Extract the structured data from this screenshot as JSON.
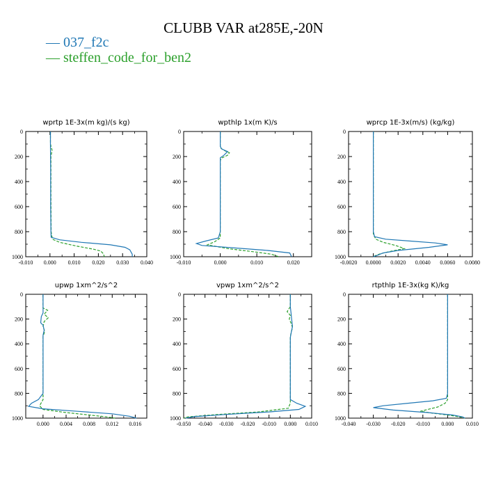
{
  "title": "CLUBB VAR at285E,-20N",
  "legend": [
    {
      "label": "037_f2c",
      "color": "#1f77b4"
    },
    {
      "label": "steffen_code_for_ben2",
      "color": "#2ca02c"
    }
  ],
  "chart_data": [
    {
      "type": "line",
      "title": "wprtp  1E-3x(m kg)/(s kg)",
      "xlim": [
        -0.01,
        0.04
      ],
      "ylim": [
        1000,
        0
      ],
      "xticks": [
        "-0.010",
        "0.000",
        "0.010",
        "0.020",
        "0.030",
        "0.040"
      ],
      "xtick_values": [
        -0.01,
        0.0,
        0.01,
        0.02,
        0.03,
        0.04
      ],
      "yticks": [
        "0",
        "200",
        "400",
        "600",
        "800",
        "1000"
      ],
      "yaxis": "pressure (0 top, 1000 bottom)",
      "series": [
        {
          "name": "037_f2c",
          "points": [
            [
              0.0002,
              0
            ],
            [
              0.0002,
              100
            ],
            [
              0.0003,
              300
            ],
            [
              0.0003,
              600
            ],
            [
              0.0004,
              800
            ],
            [
              0.0005,
              845
            ],
            [
              0.004,
              865
            ],
            [
              0.013,
              885
            ],
            [
              0.025,
              905
            ],
            [
              0.031,
              925
            ],
            [
              0.033,
              945
            ],
            [
              0.034,
              980
            ],
            [
              0.034,
              1000
            ]
          ]
        },
        {
          "name": "steffen_code_for_ben2",
          "points": [
            [
              0.0002,
              0
            ],
            [
              0.0002,
              100
            ],
            [
              0.0009,
              150
            ],
            [
              0.0004,
              200
            ],
            [
              0.0004,
              500
            ],
            [
              0.0005,
              800
            ],
            [
              0.001,
              860
            ],
            [
              0.004,
              885
            ],
            [
              0.011,
              915
            ],
            [
              0.018,
              940
            ],
            [
              0.021,
              955
            ],
            [
              0.022,
              975
            ],
            [
              0.0225,
              1000
            ]
          ]
        }
      ]
    },
    {
      "type": "line",
      "title": "wpthlp  1x(m K)/s",
      "xlim": [
        -0.01,
        0.025
      ],
      "ylim": [
        1000,
        0
      ],
      "xticks": [
        "-0.010",
        "0.000",
        "0.010",
        "0.020"
      ],
      "xtick_values": [
        -0.01,
        0.0,
        0.01,
        0.02
      ],
      "yticks": [
        "0",
        "200",
        "400",
        "600",
        "800",
        "1000"
      ],
      "yaxis": "pressure (0 top, 1000 bottom)",
      "series": [
        {
          "name": "037_f2c",
          "points": [
            [
              0.0,
              0
            ],
            [
              0.0,
              120
            ],
            [
              0.0004,
              140
            ],
            [
              0.002,
              160
            ],
            [
              0.001,
              190
            ],
            [
              0.0,
              210
            ],
            [
              0.0,
              500
            ],
            [
              0.0,
              800
            ],
            [
              -0.0005,
              850
            ],
            [
              -0.004,
              875
            ],
            [
              -0.0065,
              895
            ],
            [
              -0.005,
              910
            ],
            [
              0.004,
              930
            ],
            [
              0.013,
              950
            ],
            [
              0.019,
              970
            ],
            [
              0.0195,
              1000
            ]
          ]
        },
        {
          "name": "steffen_code_for_ben2",
          "points": [
            [
              0.0,
              0
            ],
            [
              0.0,
              130
            ],
            [
              0.001,
              150
            ],
            [
              0.0025,
              170
            ],
            [
              0.002,
              190
            ],
            [
              0.0005,
              210
            ],
            [
              0.0,
              230
            ],
            [
              0.0,
              500
            ],
            [
              0.0,
              850
            ],
            [
              -0.0015,
              880
            ],
            [
              -0.0035,
              905
            ],
            [
              0.002,
              935
            ],
            [
              0.009,
              960
            ],
            [
              0.014,
              980
            ],
            [
              0.016,
              1000
            ]
          ]
        }
      ]
    },
    {
      "type": "line",
      "title": "wprcp  1E-3x(m/s) (kg/kg)",
      "xlim": [
        -0.002,
        0.008
      ],
      "ylim": [
        1000,
        0
      ],
      "xticks": [
        "-0.0020",
        "0.0000",
        "0.0020",
        "0.0040",
        "0.0060",
        "0.0080"
      ],
      "xtick_values": [
        -0.002,
        0.0,
        0.002,
        0.004,
        0.006,
        0.008
      ],
      "yticks": [
        "0",
        "200",
        "400",
        "600",
        "800",
        "1000"
      ],
      "yaxis": "pressure (0 top, 1000 bottom)",
      "series": [
        {
          "name": "037_f2c",
          "points": [
            [
              0.0,
              0
            ],
            [
              0.0,
              400
            ],
            [
              0.0,
              800
            ],
            [
              0.0001,
              840
            ],
            [
              0.001,
              860
            ],
            [
              0.003,
              875
            ],
            [
              0.005,
              890
            ],
            [
              0.006,
              905
            ],
            [
              0.0045,
              925
            ],
            [
              0.002,
              950
            ],
            [
              0.0008,
              970
            ],
            [
              0.0003,
              990
            ],
            [
              0.0,
              1000
            ]
          ]
        },
        {
          "name": "steffen_code_for_ben2",
          "points": [
            [
              0.0,
              0
            ],
            [
              0.0,
              400
            ],
            [
              0.0,
              820
            ],
            [
              0.0002,
              860
            ],
            [
              0.0008,
              885
            ],
            [
              0.0018,
              910
            ],
            [
              0.0025,
              935
            ],
            [
              0.0015,
              955
            ],
            [
              0.0006,
              975
            ],
            [
              0.0002,
              990
            ],
            [
              0.0,
              1000
            ]
          ]
        }
      ]
    },
    {
      "type": "line",
      "title": "upwp  1xm^2/s^2",
      "xlim": [
        -0.003,
        0.018
      ],
      "ylim": [
        1000,
        0
      ],
      "xticks": [
        "0.000",
        "0.004",
        "0.008",
        "0.012",
        "0.016"
      ],
      "xtick_values": [
        0.0,
        0.004,
        0.008,
        0.012,
        0.016
      ],
      "yticks": [
        "0",
        "200",
        "400",
        "600",
        "800",
        "1000"
      ],
      "yaxis": "pressure (0 top, 1000 bottom)",
      "series": [
        {
          "name": "037_f2c",
          "points": [
            [
              0.0,
              0
            ],
            [
              0.0,
              150
            ],
            [
              -0.0003,
              180
            ],
            [
              -0.0004,
              230
            ],
            [
              0.0,
              250
            ],
            [
              0.0002,
              290
            ],
            [
              0.0,
              330
            ],
            [
              0.0,
              500
            ],
            [
              0.0,
              800
            ],
            [
              -0.0008,
              850
            ],
            [
              -0.002,
              880
            ],
            [
              -0.0025,
              905
            ],
            [
              0.0,
              925
            ],
            [
              0.006,
              945
            ],
            [
              0.012,
              965
            ],
            [
              0.015,
              985
            ],
            [
              0.0162,
              1000
            ]
          ]
        },
        {
          "name": "steffen_code_for_ben2",
          "points": [
            [
              0.0,
              0
            ],
            [
              0.0,
              110
            ],
            [
              0.0008,
              130
            ],
            [
              0.0002,
              160
            ],
            [
              0.0009,
              190
            ],
            [
              0.0002,
              220
            ],
            [
              0.0,
              260
            ],
            [
              0.0003,
              300
            ],
            [
              0.0,
              340
            ],
            [
              0.0,
              500
            ],
            [
              0.0,
              850
            ],
            [
              -0.0006,
              900
            ],
            [
              0.0,
              930
            ],
            [
              0.004,
              955
            ],
            [
              0.008,
              975
            ],
            [
              0.011,
              990
            ],
            [
              0.0125,
              1000
            ]
          ]
        }
      ]
    },
    {
      "type": "line",
      "title": "vpwp  1xm^2/s^2",
      "xlim": [
        -0.05,
        0.01
      ],
      "ylim": [
        1000,
        0
      ],
      "xticks": [
        "-0.050",
        "-0.040",
        "-0.030",
        "-0.020",
        "-0.010",
        "0.000",
        "0.010"
      ],
      "xtick_values": [
        -0.05,
        -0.04,
        -0.03,
        -0.02,
        -0.01,
        0.0,
        0.01
      ],
      "yticks": [
        "0",
        "200",
        "400",
        "600",
        "800",
        "1000"
      ],
      "yaxis": "pressure (0 top, 1000 bottom)",
      "series": [
        {
          "name": "037_f2c",
          "points": [
            [
              0.0,
              0
            ],
            [
              0.0,
              100
            ],
            [
              0.0003,
              150
            ],
            [
              0.0006,
              200
            ],
            [
              0.001,
              260
            ],
            [
              0.0005,
              300
            ],
            [
              0.0,
              350
            ],
            [
              0.0,
              600
            ],
            [
              0.0,
              850
            ],
            [
              0.003,
              880
            ],
            [
              0.007,
              905
            ],
            [
              0.004,
              930
            ],
            [
              -0.01,
              950
            ],
            [
              -0.03,
              970
            ],
            [
              -0.045,
              988
            ],
            [
              -0.049,
              1000
            ]
          ]
        },
        {
          "name": "steffen_code_for_ben2",
          "points": [
            [
              0.0,
              0
            ],
            [
              0.0,
              100
            ],
            [
              -0.0015,
              140
            ],
            [
              0.0,
              170
            ],
            [
              -0.0005,
              200
            ],
            [
              0.0005,
              240
            ],
            [
              0.001,
              270
            ],
            [
              0.0005,
              300
            ],
            [
              0.0,
              340
            ],
            [
              0.0,
              600
            ],
            [
              0.0,
              880
            ],
            [
              -0.001,
              920
            ],
            [
              -0.015,
              950
            ],
            [
              -0.035,
              972
            ],
            [
              -0.048,
              990
            ],
            [
              -0.05,
              1000
            ]
          ]
        }
      ]
    },
    {
      "type": "line",
      "title": "rtpthlp  1E-3x(kg K)/kg",
      "xlim": [
        -0.04,
        0.01
      ],
      "ylim": [
        1000,
        0
      ],
      "xticks": [
        "-0.040",
        "-0.030",
        "-0.020",
        "-0.010",
        "0.000",
        "0.010"
      ],
      "xtick_values": [
        -0.04,
        -0.03,
        -0.02,
        -0.01,
        0.0,
        0.01
      ],
      "yticks": [
        "0",
        "200",
        "400",
        "600",
        "800",
        "1000"
      ],
      "yaxis": "pressure (0 top, 1000 bottom)",
      "series": [
        {
          "name": "037_f2c",
          "points": [
            [
              0.0,
              0
            ],
            [
              0.0,
              400
            ],
            [
              0.0,
              800
            ],
            [
              -0.0005,
              840
            ],
            [
              -0.006,
              860
            ],
            [
              -0.016,
              880
            ],
            [
              -0.026,
              900
            ],
            [
              -0.03,
              915
            ],
            [
              -0.022,
              935
            ],
            [
              -0.008,
              955
            ],
            [
              0.002,
              975
            ],
            [
              0.006,
              990
            ],
            [
              0.007,
              1000
            ]
          ]
        },
        {
          "name": "steffen_code_for_ben2",
          "points": [
            [
              0.0,
              0
            ],
            [
              0.0,
              400
            ],
            [
              0.0,
              850
            ],
            [
              -0.001,
              880
            ],
            [
              -0.004,
              910
            ],
            [
              -0.008,
              930
            ],
            [
              -0.011,
              945
            ],
            [
              -0.006,
              960
            ],
            [
              0.0,
              975
            ],
            [
              0.005,
              990
            ],
            [
              0.007,
              1000
            ]
          ]
        }
      ]
    }
  ]
}
